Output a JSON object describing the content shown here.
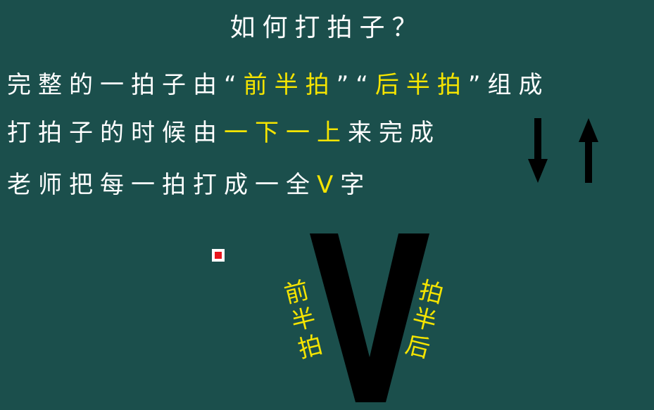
{
  "slide": {
    "title": "如何打拍子？",
    "line1": {
      "part1": "完整的一拍子由“",
      "hl1": "前半拍",
      "part2": "”“",
      "hl2": "后半拍",
      "part3": "”组成"
    },
    "line2": {
      "part1": "打拍子的时候由",
      "hl": "一下一上",
      "part2": "来完成"
    },
    "line3": {
      "part1": "老师把每一拍打成一全",
      "hl": "V",
      "part2": "字"
    },
    "v_left_label": "前半拍",
    "v_right_label": "后半拍",
    "icons": [
      "arrow-down-icon",
      "arrow-up-icon",
      "pointer-icon"
    ]
  },
  "colors": {
    "background": "#1b4f4c",
    "text": "#ffffff",
    "highlight": "#f5e400",
    "shape": "#000000",
    "pointer": "#e8161d"
  }
}
